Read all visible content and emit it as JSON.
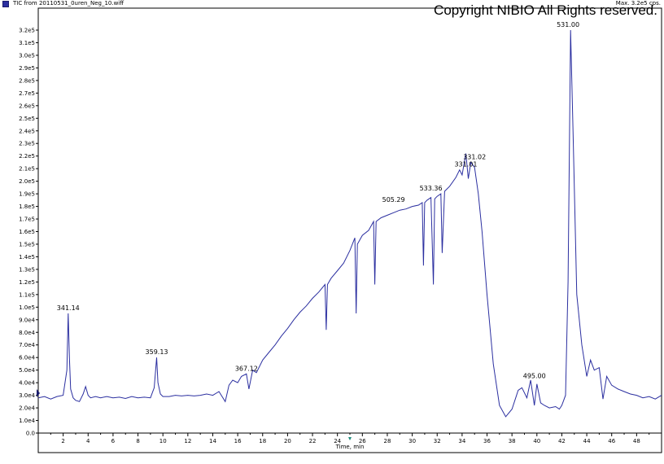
{
  "header": {
    "file_label": "TIC from 20110531_0uren_Neg_10.wiff",
    "max_label": "Max. 3.2e5 cps.",
    "copyright": "Copyright NIBIO All Rights reserved."
  },
  "colors": {
    "trace": "#2b2fa0",
    "axis": "#000000"
  },
  "chart_data": {
    "type": "line",
    "title": "",
    "xlabel": "Time, min",
    "ylabel": "",
    "xlim": [
      0,
      50
    ],
    "ylim": [
      0,
      320000
    ],
    "x_ticks": [
      2,
      4,
      6,
      8,
      10,
      12,
      14,
      16,
      18,
      20,
      22,
      24,
      26,
      28,
      30,
      32,
      34,
      36,
      38,
      40,
      42,
      44,
      46,
      48
    ],
    "x_tick_labels": [
      "2",
      "4",
      "6",
      "8",
      "10",
      "12",
      "14",
      "16",
      "18",
      "20",
      "22",
      "24",
      "26",
      "28",
      "30",
      "32",
      "34",
      "36",
      "38",
      "40",
      "42",
      "44",
      "46",
      "48"
    ],
    "y_ticks": [
      0,
      10000,
      20000,
      30000,
      40000,
      50000,
      60000,
      70000,
      80000,
      90000,
      100000,
      110000,
      120000,
      130000,
      140000,
      150000,
      160000,
      170000,
      180000,
      190000,
      200000,
      210000,
      220000,
      230000,
      240000,
      250000,
      260000,
      270000,
      280000,
      290000,
      300000,
      310000,
      320000
    ],
    "y_tick_labels": [
      "0.0",
      "1.0e4",
      "2.0e4",
      "3.0e4",
      "4.0e4",
      "5.0e4",
      "6.0e4",
      "7.0e4",
      "8.0e4",
      "9.0e4",
      "1.0e5",
      "1.1e5",
      "1.2e5",
      "1.3e5",
      "1.4e5",
      "1.5e5",
      "1.6e5",
      "1.7e5",
      "1.8e5",
      "1.9e5",
      "2.0e5",
      "2.1e5",
      "2.2e5",
      "2.3e5",
      "2.4e5",
      "2.5e5",
      "2.6e5",
      "2.7e5",
      "2.8e5",
      "2.9e5",
      "3.0e5",
      "3.1e5",
      "3.2e5"
    ],
    "series": [
      {
        "x": [
          0.0,
          0.5,
          1.0,
          1.5,
          2.0,
          2.3,
          2.4,
          2.5,
          2.6,
          2.8,
          3.0,
          3.3,
          3.6,
          3.8,
          4.0,
          4.2,
          4.6,
          5.0,
          5.5,
          6.0,
          6.5,
          7.0,
          7.5,
          8.0,
          8.5,
          9.0,
          9.3,
          9.5,
          9.6,
          9.8,
          10.0,
          10.5,
          11.0,
          11.5,
          12.0,
          12.5,
          13.0,
          13.5,
          14.0,
          14.5,
          15.0,
          15.3,
          15.6,
          16.0,
          16.3,
          16.7,
          16.9,
          17.2,
          17.5,
          18.0,
          18.5,
          19.0,
          19.5,
          20.0,
          20.5,
          21.0,
          21.5,
          22.0,
          22.5,
          23.0,
          23.1,
          23.2,
          23.5,
          24.0,
          24.5,
          25.0,
          25.4,
          25.5,
          25.6,
          26.0,
          26.5,
          26.9,
          27.0,
          27.1,
          27.5,
          28.0,
          28.5,
          29.0,
          29.5,
          30.0,
          30.5,
          30.8,
          30.9,
          31.0,
          31.2,
          31.5,
          31.7,
          31.8,
          32.0,
          32.3,
          32.4,
          32.6,
          33.0,
          33.5,
          33.8,
          34.0,
          34.3,
          34.5,
          34.7,
          35.0,
          35.3,
          35.6,
          36.0,
          36.5,
          37.0,
          37.5,
          38.0,
          38.5,
          38.8,
          39.2,
          39.5,
          39.8,
          40.0,
          40.3,
          40.6,
          41.0,
          41.5,
          41.8,
          42.0,
          42.3,
          42.5,
          42.7,
          42.9,
          43.2,
          43.6,
          44.0,
          44.3,
          44.6,
          45.0,
          45.3,
          45.6,
          46.0,
          46.5,
          47.0,
          47.5,
          48.0,
          48.5,
          49.0,
          49.5,
          50.0
        ],
        "y": [
          28000,
          29000,
          27000,
          29000,
          30000,
          50000,
          95000,
          60000,
          35000,
          28000,
          26000,
          25000,
          31000,
          37000,
          30000,
          28000,
          29000,
          28000,
          29000,
          28000,
          28500,
          27500,
          29000,
          28000,
          28500,
          28000,
          36000,
          60000,
          40000,
          31000,
          29000,
          29000,
          30000,
          29500,
          30000,
          29500,
          30000,
          31000,
          30000,
          33000,
          25000,
          38000,
          42000,
          40000,
          45000,
          47000,
          35000,
          50000,
          48000,
          58000,
          64000,
          70000,
          77000,
          83000,
          90000,
          96000,
          101000,
          107000,
          112000,
          118000,
          82000,
          118000,
          123000,
          129000,
          135000,
          145000,
          155000,
          95000,
          150000,
          157000,
          161000,
          168000,
          118000,
          168000,
          171000,
          173000,
          175000,
          177000,
          178000,
          180000,
          181000,
          183000,
          133000,
          183000,
          185000,
          187000,
          118000,
          186000,
          188000,
          190000,
          143000,
          192000,
          196000,
          203000,
          209000,
          205000,
          222000,
          202000,
          215000,
          211000,
          190000,
          160000,
          110000,
          55000,
          22000,
          13000,
          19000,
          34000,
          36000,
          28000,
          42000,
          22000,
          39000,
          24000,
          22000,
          20000,
          21000,
          19000,
          22000,
          30000,
          120000,
          320000,
          240000,
          110000,
          70000,
          45000,
          58000,
          50000,
          52000,
          27000,
          45000,
          38000,
          35000,
          33000,
          31000,
          30000,
          28000,
          29000,
          27000,
          30000
        ]
      }
    ],
    "annotations": [
      {
        "label": "341.14",
        "x": 2.4,
        "y": 95000
      },
      {
        "label": "359.13",
        "x": 9.5,
        "y": 60000
      },
      {
        "label": "367.12",
        "x": 16.7,
        "y": 47000
      },
      {
        "label": "505.29",
        "x": 28.5,
        "y": 181000
      },
      {
        "label": "533.36",
        "x": 31.5,
        "y": 190000
      },
      {
        "label": "331.01",
        "x": 34.3,
        "y": 209000
      },
      {
        "label": "331.02",
        "x": 35.0,
        "y": 215000
      },
      {
        "label": "495.00",
        "x": 39.8,
        "y": 41000
      },
      {
        "label": "531.00",
        "x": 42.5,
        "y": 320000
      }
    ]
  }
}
